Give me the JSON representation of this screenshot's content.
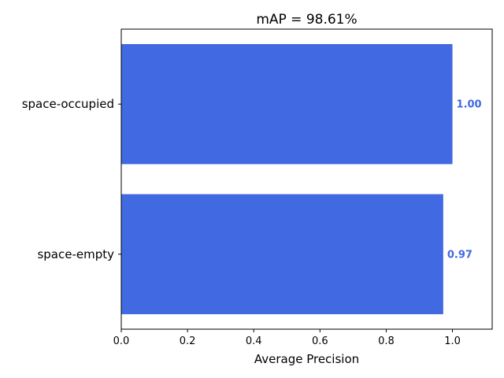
{
  "chart_data": {
    "type": "bar",
    "orientation": "horizontal",
    "title": "mAP = 98.61%",
    "xlabel": "Average Precision",
    "ylabel": "",
    "categories": [
      "space-empty",
      "space-occupied"
    ],
    "values": [
      0.9722,
      1.0
    ],
    "data_labels": [
      "0.97",
      "1.00"
    ],
    "xlim": [
      0,
      1.12
    ],
    "xticks": [
      0.0,
      0.2,
      0.4,
      0.6,
      0.8,
      1.0
    ],
    "xtick_labels": [
      "0.0",
      "0.2",
      "0.4",
      "0.6",
      "0.8",
      "1.0"
    ],
    "bar_color": "#4169e1",
    "grid": false
  }
}
